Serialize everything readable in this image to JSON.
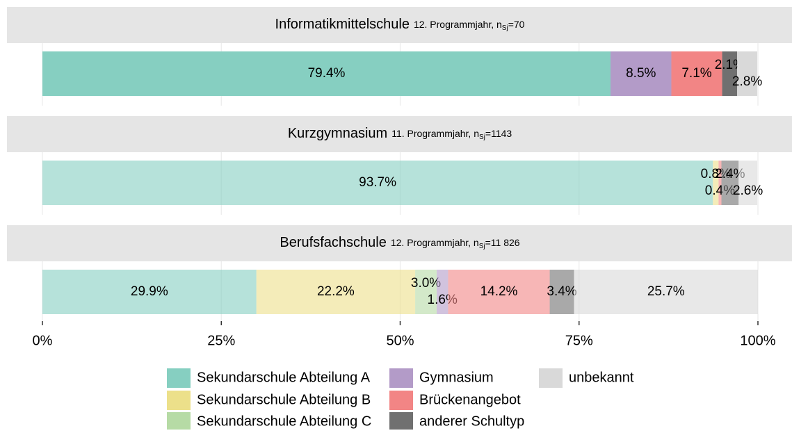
{
  "chart_data": {
    "type": "bar",
    "orientation": "horizontal",
    "stacked": true,
    "categories": [
      "Informatikmittelschule",
      "Kurzgymnasium",
      "Berufsfachschule"
    ],
    "facet_notes": [
      {
        "text": "12. Programmjahr, n",
        "sub": "Sj",
        "suffix": "=70",
        "highlight": true
      },
      {
        "text": "11. Programmjahr, n",
        "sub": "Sj",
        "suffix": "=1143",
        "highlight": false
      },
      {
        "text": "12. Programmjahr, n",
        "sub": "Sj",
        "suffix": "=11 826",
        "highlight": false
      }
    ],
    "series": [
      {
        "name": "Sekundarschule Abteilung A",
        "color": "#86cfc1",
        "values": [
          79.4,
          93.7,
          29.9
        ]
      },
      {
        "name": "Sekundarschule Abteilung B",
        "color": "#ece08a",
        "values": [
          null,
          0.8,
          22.2
        ]
      },
      {
        "name": "Sekundarschule Abteilung C",
        "color": "#b6dba5",
        "values": [
          null,
          null,
          3.0
        ],
        "value_labels": [
          null,
          null,
          "3.0%"
        ]
      },
      {
        "name": "Gymnasium",
        "color": "#b39bc8",
        "values": [
          8.5,
          null,
          1.6
        ]
      },
      {
        "name": "Brückenangebot",
        "color": "#f28585",
        "values": [
          7.1,
          0.4,
          14.2
        ]
      },
      {
        "name": "anderer Schultyp",
        "color": "#707070",
        "values": [
          2.1,
          2.4,
          3.4
        ]
      },
      {
        "name": "unbekannt",
        "color": "#d9d9d9",
        "values": [
          2.8,
          2.6,
          25.7
        ]
      }
    ],
    "xlim": [
      0,
      100
    ],
    "xticks": [
      {
        "value": 0,
        "label": "0%"
      },
      {
        "value": 25,
        "label": "25%"
      },
      {
        "value": 50,
        "label": "50%"
      },
      {
        "value": 75,
        "label": "75%"
      },
      {
        "value": 100,
        "label": "100%"
      }
    ],
    "grid": true
  }
}
